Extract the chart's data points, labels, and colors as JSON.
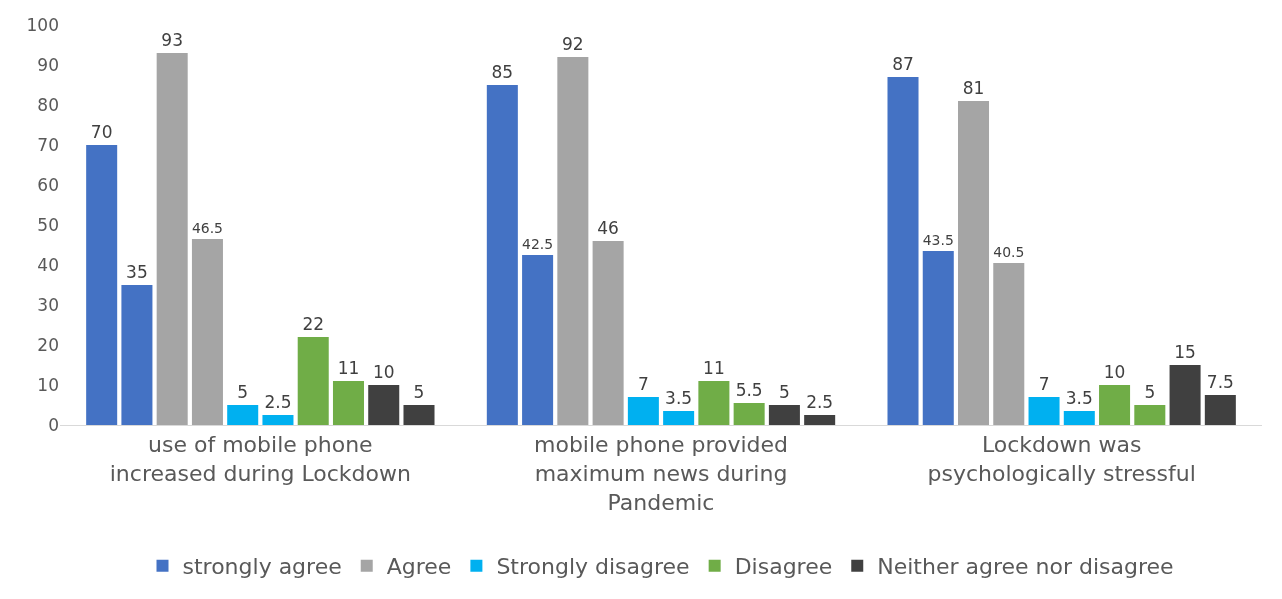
{
  "chart_data": {
    "type": "bar",
    "categories": [
      "use of mobile phone increased during Lockdown",
      "mobile phone provided maximum news during Pandemic",
      "Lockdown was psychologically stressful"
    ],
    "series": [
      {
        "name": "strongly agree",
        "color": "#4472c4",
        "values": [
          70,
          85,
          87
        ]
      },
      {
        "color": "#4472c4",
        "values": [
          35,
          42.5,
          43.5
        ]
      },
      {
        "name": "Agree",
        "color": "#a5a5a5",
        "values": [
          93,
          92,
          81
        ]
      },
      {
        "color": "#a5a5a5",
        "values": [
          46.5,
          46,
          40.5
        ]
      },
      {
        "name": "Strongly disagree",
        "color": "#00b0f0",
        "values": [
          5,
          7,
          7
        ]
      },
      {
        "color": "#00b0f0",
        "values": [
          2.5,
          3.5,
          3.5
        ]
      },
      {
        "name": "Disagree",
        "color": "#70ad47",
        "values": [
          22,
          11,
          10
        ]
      },
      {
        "color": "#70ad47",
        "values": [
          11,
          5.5,
          5
        ]
      },
      {
        "name": "Neither agree nor disagree",
        "color": "#404040",
        "values": [
          10,
          5,
          15
        ]
      },
      {
        "color": "#404040",
        "values": [
          5,
          2.5,
          7.5
        ]
      }
    ],
    "ylim": [
      0,
      100
    ],
    "yticks": [
      0,
      10,
      20,
      30,
      40,
      50,
      60,
      70,
      80,
      90,
      100
    ],
    "data_labels": true,
    "grid": false,
    "legend": "bottom"
  }
}
